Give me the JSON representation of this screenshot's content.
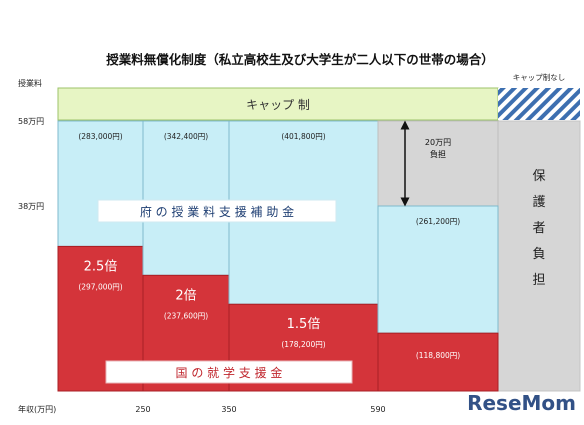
{
  "chart_data": {
    "type": "bar",
    "title": "授業料無償化制度（私立高校生及び大学生が二人以下の世帯の場合）",
    "ylabel": "授業料",
    "xlabel": "年収(万円)",
    "y_ticks": [
      {
        "value": 58,
        "label": "58万円"
      },
      {
        "value": 38,
        "label": "38万円"
      }
    ],
    "x_ticks": [
      {
        "value": 250,
        "label": "250"
      },
      {
        "value": 350,
        "label": "350"
      },
      {
        "value": 590,
        "label": "590"
      }
    ],
    "ylim": [
      0,
      73
    ],
    "cap": {
      "label": "キャップ 制",
      "no_cap_label": "キャップ制なし"
    },
    "segments": [
      {
        "x0": 0,
        "x1": 250,
        "national": 29.7,
        "national_top_label": "2.5倍",
        "national_label": "(297,000円)",
        "prefecture_label": "(283,000円)"
      },
      {
        "x0": 250,
        "x1": 350,
        "national": 23.76,
        "national_top_label": "2倍",
        "national_label": "(237,600円)",
        "prefecture_label": "(342,400円)"
      },
      {
        "x0": 350,
        "x1": 590,
        "national": 17.82,
        "national_top_label": "1.5倍",
        "national_label": "(178,200円)",
        "prefecture_label": "(401,800円)"
      },
      {
        "x0": 590,
        "x1": 910,
        "national": 11.88,
        "national_top_label": "",
        "national_label": "(118,800円)",
        "prefecture_top": 38,
        "prefecture_label": "(261,200円)"
      }
    ],
    "series": [
      {
        "name": "国 の 就 学 支 援 金",
        "color": "#d4343a"
      },
      {
        "name": "府 の 授 業 料 支 援 補 助 金",
        "color": "#c8eef7"
      }
    ],
    "burden_arrow_label": [
      "20万円",
      "負担"
    ],
    "guardian_label": "保護者負担",
    "watermark": "ReseMom"
  }
}
